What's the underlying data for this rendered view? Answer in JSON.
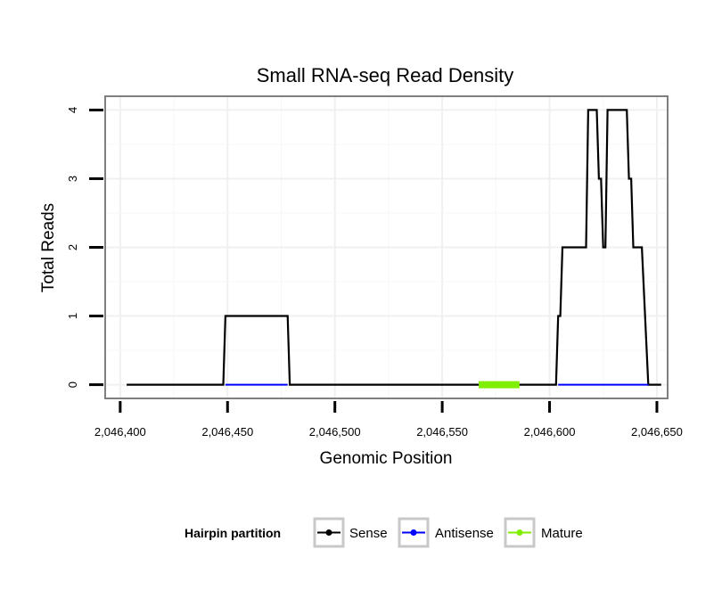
{
  "chart_data": {
    "type": "line",
    "title": "Small RNA-seq Read Density",
    "xlabel": "Genomic Position",
    "ylabel": "Total Reads",
    "xlim": [
      2046393,
      2046655
    ],
    "ylim": [
      -0.2,
      4.2
    ],
    "x_ticks": [
      2046400,
      2046450,
      2046500,
      2046550,
      2046600,
      2046650
    ],
    "x_tick_labels": [
      "2,046,400",
      "2,046,450",
      "2,046,500",
      "2,046,550",
      "2,046,600",
      "2,046,650"
    ],
    "y_ticks": [
      0,
      1,
      2,
      3,
      4
    ],
    "y_tick_labels": [
      "0",
      "1",
      "2",
      "3",
      "4"
    ],
    "grid": true,
    "legend": {
      "title": "Hairpin partition",
      "placement": "bottom",
      "entries": [
        "Sense",
        "Antisense",
        "Mature"
      ]
    },
    "series": [
      {
        "name": "Sense",
        "color": "#000000",
        "points": [
          [
            2046403,
            0
          ],
          [
            2046448,
            0
          ],
          [
            2046449,
            1
          ],
          [
            2046478,
            1
          ],
          [
            2046479,
            0
          ],
          [
            2046603,
            0
          ],
          [
            2046604,
            1
          ],
          [
            2046605,
            1
          ],
          [
            2046606,
            2
          ],
          [
            2046617,
            2
          ],
          [
            2046618,
            4
          ],
          [
            2046622,
            4
          ],
          [
            2046623,
            3
          ],
          [
            2046624,
            3
          ],
          [
            2046625,
            2
          ],
          [
            2046626,
            2
          ],
          [
            2046627,
            4
          ],
          [
            2046636,
            4
          ],
          [
            2046637,
            3
          ],
          [
            2046638,
            3
          ],
          [
            2046639,
            2
          ],
          [
            2046643,
            2
          ],
          [
            2046646,
            0
          ],
          [
            2046652,
            0
          ]
        ]
      },
      {
        "name": "Antisense",
        "color": "#0000ff",
        "segments": [
          [
            2046449,
            2046478
          ],
          [
            2046604,
            2046646
          ]
        ],
        "value": 0
      },
      {
        "name": "Mature",
        "color": "#80ee00",
        "segments": [
          [
            2046567,
            2046586
          ]
        ],
        "value": 0
      }
    ]
  }
}
